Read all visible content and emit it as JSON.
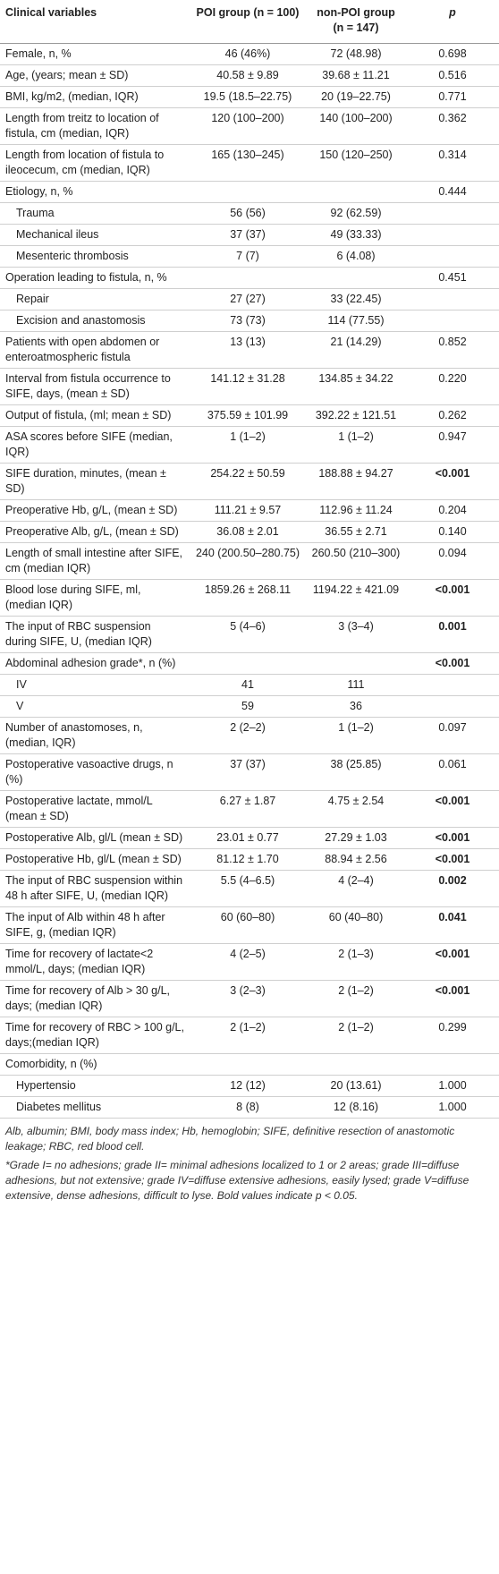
{
  "table": {
    "header": [
      "Clinical variables",
      "POI group (n = 100)",
      "non-POI group (n = 147)",
      "p"
    ],
    "rows": [
      {
        "cells": [
          "Female, n, %",
          "46 (46%)",
          "72 (48.98)",
          "0.698"
        ]
      },
      {
        "cells": [
          "Age, (years; mean ± SD)",
          "40.58 ± 9.89",
          "39.68 ± 11.21",
          "0.516"
        ]
      },
      {
        "cells": [
          "BMI, kg/m2, (median, IQR)",
          "19.5 (18.5–22.75)",
          "20 (19–22.75)",
          "0.771"
        ]
      },
      {
        "cells": [
          "Length from treitz to location of fistula, cm (median, IQR)",
          "120 (100–200)",
          "140 (100–200)",
          "0.362"
        ]
      },
      {
        "cells": [
          "Length from location of fistula to ileocecum, cm (median, IQR)",
          "165 (130–245)",
          "150 (120–250)",
          "0.314"
        ]
      },
      {
        "cells": [
          "Etiology, n, %",
          null,
          null,
          "0.444"
        ]
      },
      {
        "cells": [
          "Trauma",
          "56 (56)",
          "92 (62.59)",
          null
        ],
        "indent": true
      },
      {
        "cells": [
          "Mechanical ileus",
          "37 (37)",
          "49 (33.33)",
          null
        ],
        "indent": true
      },
      {
        "cells": [
          "Mesenteric thrombosis",
          "7 (7)",
          "6 (4.08)",
          null
        ],
        "indent": true
      },
      {
        "cells": [
          "Operation leading to fistula, n, %",
          null,
          null,
          "0.451"
        ]
      },
      {
        "cells": [
          "Repair",
          "27 (27)",
          "33 (22.45)",
          null
        ],
        "indent": true
      },
      {
        "cells": [
          "Excision and anastomosis",
          "73 (73)",
          "114 (77.55)",
          null
        ],
        "indent": true
      },
      {
        "cells": [
          "Patients with open abdomen or enteroatmospheric fistula",
          "13 (13)",
          "21 (14.29)",
          "0.852"
        ]
      },
      {
        "cells": [
          "Interval from fistula occurrence to SIFE, days, (mean ± SD)",
          "141.12 ± 31.28",
          "134.85 ± 34.22",
          "0.220"
        ]
      },
      {
        "cells": [
          "Output of fistula, (ml; mean ± SD)",
          "375.59 ± 101.99",
          "392.22 ± 121.51",
          "0.262"
        ]
      },
      {
        "cells": [
          "ASA scores before SIFE (median, IQR)",
          "1 (1–2)",
          "1 (1–2)",
          "0.947"
        ]
      },
      {
        "cells": [
          "SIFE duration, minutes, (mean ± SD)",
          "254.22 ± 50.59",
          "188.88 ± 94.27",
          "<0.001"
        ],
        "bold_p": true
      },
      {
        "cells": [
          "Preoperative Hb, g/L, (mean ± SD)",
          "111.21 ± 9.57",
          "112.96 ± 11.24",
          "0.204"
        ]
      },
      {
        "cells": [
          "Preoperative Alb, g/L, (mean ± SD)",
          "36.08 ± 2.01",
          "36.55 ± 2.71",
          "0.140"
        ]
      },
      {
        "cells": [
          "Length of small intestine after SIFE, cm (median IQR)",
          "240 (200.50–280.75)",
          "260.50 (210–300)",
          "0.094"
        ]
      },
      {
        "cells": [
          "Blood lose during SIFE, ml, (median IQR)",
          "1859.26 ± 268.11",
          "1194.22 ± 421.09",
          "<0.001"
        ],
        "bold_p": true
      },
      {
        "cells": [
          "The input of RBC suspension during SIFE, U, (median IQR)",
          "5 (4–6)",
          "3 (3–4)",
          "0.001"
        ],
        "bold_p": true
      },
      {
        "cells": [
          "Abdominal adhesion grade*, n (%)",
          null,
          null,
          "<0.001"
        ],
        "bold_p": true
      },
      {
        "cells": [
          "IV",
          "41",
          "111",
          null
        ],
        "indent": true
      },
      {
        "cells": [
          "V",
          "59",
          "36",
          null
        ],
        "indent": true
      },
      {
        "cells": [
          "Number of anastomoses, n, (median, IQR)",
          "2 (2–2)",
          "1 (1–2)",
          "0.097"
        ]
      },
      {
        "cells": [
          "Postoperative vasoactive drugs, n (%)",
          "37 (37)",
          "38 (25.85)",
          "0.061"
        ]
      },
      {
        "cells": [
          "Postoperative lactate, mmol/L (mean ± SD)",
          "6.27 ± 1.87",
          "4.75 ± 2.54",
          "<0.001"
        ],
        "bold_p": true
      },
      {
        "cells": [
          "Postoperative Alb, gl/L (mean ± SD)",
          "23.01 ± 0.77",
          "27.29 ± 1.03",
          "<0.001"
        ],
        "bold_p": true
      },
      {
        "cells": [
          "Postoperative Hb, gl/L (mean ± SD)",
          "81.12 ± 1.70",
          "88.94 ± 2.56",
          "<0.001"
        ],
        "bold_p": true
      },
      {
        "cells": [
          "The input of RBC suspension within 48 h after SIFE, U, (median IQR)",
          "5.5 (4–6.5)",
          "4 (2–4)",
          "0.002"
        ],
        "bold_p": true
      },
      {
        "cells": [
          "The input of Alb within 48 h after SIFE, g, (median IQR)",
          "60 (60–80)",
          "60 (40–80)",
          "0.041"
        ],
        "bold_p": true
      },
      {
        "cells": [
          "Time for recovery of lactate<2 mmol/L, days; (median IQR)",
          "4 (2–5)",
          "2 (1–3)",
          "<0.001"
        ],
        "bold_p": true
      },
      {
        "cells": [
          "Time for recovery of Alb > 30 g/L, days; (median IQR)",
          "3 (2–3)",
          "2 (1–2)",
          "<0.001"
        ],
        "bold_p": true
      },
      {
        "cells": [
          "Time for recovery of RBC > 100 g/L, days;(median IQR)",
          "2 (1–2)",
          "2 (1–2)",
          "0.299"
        ]
      },
      {
        "cells": [
          "Comorbidity, n (%)",
          null,
          null,
          null
        ]
      },
      {
        "cells": [
          "Hypertensio",
          "12 (12)",
          "20 (13.61)",
          "1.000"
        ],
        "indent": true
      },
      {
        "cells": [
          "Diabetes mellitus",
          "8 (8)",
          "12 (8.16)",
          "1.000"
        ],
        "indent": true
      }
    ]
  },
  "footnotes": [
    "Alb, albumin; BMI, body mass index; Hb, hemoglobin; SIFE, definitive resection of anastomotic leakage; RBC, red blood cell.",
    "*Grade I= no adhesions; grade II= minimal adhesions localized to 1 or 2 areas; grade III=diffuse adhesions, but not extensive; grade IV=diffuse extensive adhesions, easily lysed; grade V=diffuse extensive, dense adhesions, difficult to lyse. Bold values indicate p < 0.05."
  ]
}
